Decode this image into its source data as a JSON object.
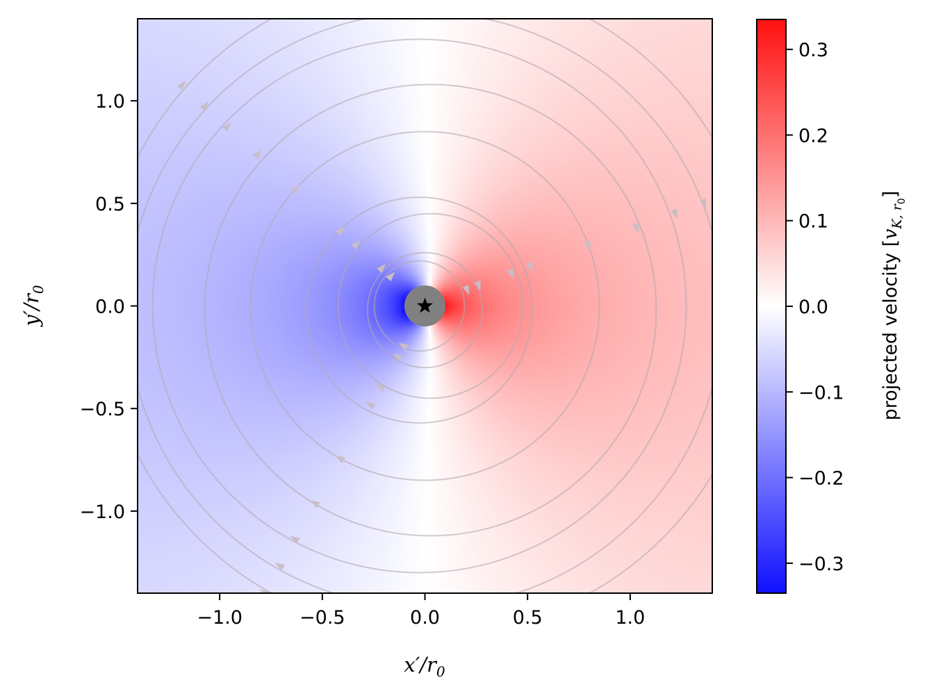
{
  "chart_data": {
    "type": "heatmap",
    "description_kind": "projected velocity map with streamlines",
    "xlabel": "x′/r₀",
    "ylabel": "y′/r₀",
    "xlim": [
      -1.4,
      1.4
    ],
    "ylim": [
      -1.4,
      1.4
    ],
    "xticks": [
      -1.0,
      -0.5,
      0.0,
      0.5,
      1.0
    ],
    "xtick_labels": [
      "−1.0",
      "−0.5",
      "0.0",
      "0.5",
      "1.0"
    ],
    "yticks": [
      -1.0,
      -0.5,
      0.0,
      0.5,
      1.0
    ],
    "ytick_labels": [
      "−1.0",
      "−0.5",
      "0.0",
      "0.5",
      "1.0"
    ],
    "colorbar": {
      "label": "projected velocity [v_{K,r₀}]",
      "label_main": "projected velocity [",
      "label_sym": "v",
      "label_sub": "K, r",
      "label_subsub": "0",
      "label_close": "]",
      "colormap": "bwr",
      "range": [
        -0.335,
        0.335
      ],
      "ticks": [
        -0.3,
        -0.2,
        -0.1,
        0.0,
        0.1,
        0.2,
        0.3
      ],
      "tick_labels": [
        "−0.3",
        "−0.2",
        "−0.1",
        "0.0",
        "0.1",
        "0.2",
        "0.3"
      ]
    },
    "central_mask_radius": 0.1,
    "star_position": [
      0.0,
      0.0
    ],
    "streamline_radii": [
      0.22,
      0.28,
      0.45,
      0.55,
      0.85,
      1.1,
      1.3,
      1.45,
      1.6
    ],
    "colors": {
      "mask": "#808080",
      "star": "#000000",
      "streamline": "#b4a8b0",
      "negative": "#0000ff",
      "positive": "#ff0000"
    },
    "grid": false
  }
}
